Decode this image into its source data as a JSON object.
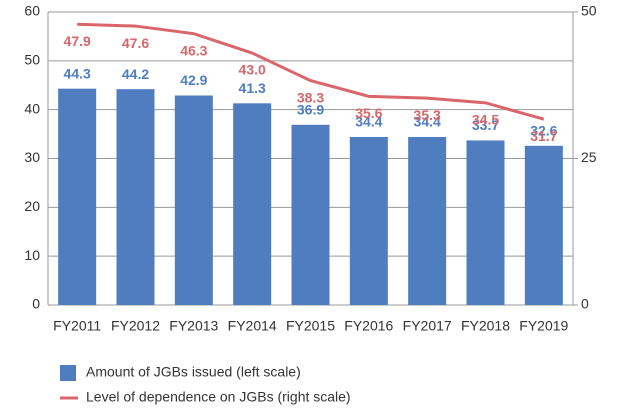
{
  "chart_data": {
    "type": "bar_line",
    "categories": [
      "FY2011",
      "FY2012",
      "FY2013",
      "FY2014",
      "FY2015",
      "FY2016",
      "FY2017",
      "FY2018",
      "FY2019"
    ],
    "series": [
      {
        "name": "Amount of JGBs issued (left scale)",
        "type": "bar",
        "color": "#4f7dbf",
        "values": [
          44.3,
          44.2,
          42.9,
          41.3,
          36.9,
          34.4,
          34.4,
          33.7,
          32.6
        ]
      },
      {
        "name": "Level of dependence on JGBs (right scale)",
        "type": "line",
        "axis": "y2",
        "color": "#d9666b",
        "values": [
          47.9,
          47.6,
          46.3,
          43.0,
          38.3,
          35.6,
          35.3,
          34.5,
          31.7
        ],
        "value_labels": [
          "47.9",
          "47.6",
          "46.3",
          "43.0",
          "38.3",
          "35.6",
          "35.3",
          "34.5",
          "31.7"
        ]
      }
    ],
    "ylim": [
      0,
      60
    ],
    "yticks": [
      0,
      10,
      20,
      30,
      40,
      50,
      60
    ],
    "y2lim": [
      0,
      50
    ],
    "y2ticks": [
      0,
      25,
      50
    ],
    "grid": true,
    "legend": "bottom"
  }
}
